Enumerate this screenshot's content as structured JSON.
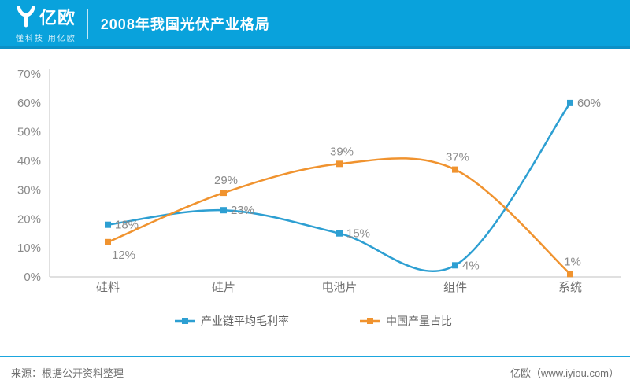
{
  "header": {
    "logo_text": "亿欧",
    "tagline": "懂科技 用亿欧",
    "title": "2008年我国光伏产业格局"
  },
  "chart_data": {
    "type": "line",
    "title": "2008年我国光伏产业格局",
    "categories": [
      "硅料",
      "硅片",
      "电池片",
      "组件",
      "系统"
    ],
    "series": [
      {
        "name": "产业链平均毛利率",
        "color": "#2d9fd2",
        "values": [
          18,
          23,
          15,
          4,
          60
        ],
        "label_pos": [
          "right",
          "right",
          "right",
          "right",
          "right"
        ]
      },
      {
        "name": "中国产量占比",
        "color": "#f0932f",
        "values": [
          12,
          29,
          39,
          37,
          1
        ],
        "label_pos": [
          "below",
          "above",
          "above",
          "above",
          "above"
        ]
      }
    ],
    "ylim": [
      0,
      70
    ],
    "ytick_step": 10,
    "ytick_suffix": "%",
    "data_label_suffix": "%",
    "grid": false,
    "smooth": true,
    "marker": "square",
    "legend_position": "bottom",
    "axis_color": "#d5d5d5",
    "tick_label_color": "#8a8a8a",
    "data_label_color": "#8a8a8a",
    "category_label_color": "#6f6f6f",
    "legend_text_color": "#5f5f5f"
  },
  "footer": {
    "source": "来源：根据公开资料整理",
    "site": "亿欧（www.iyiou.com）",
    "accent_color": "#1ba6de"
  },
  "colors": {
    "header_bg": "#09a2dc",
    "header_edge": "#0c90c6"
  }
}
